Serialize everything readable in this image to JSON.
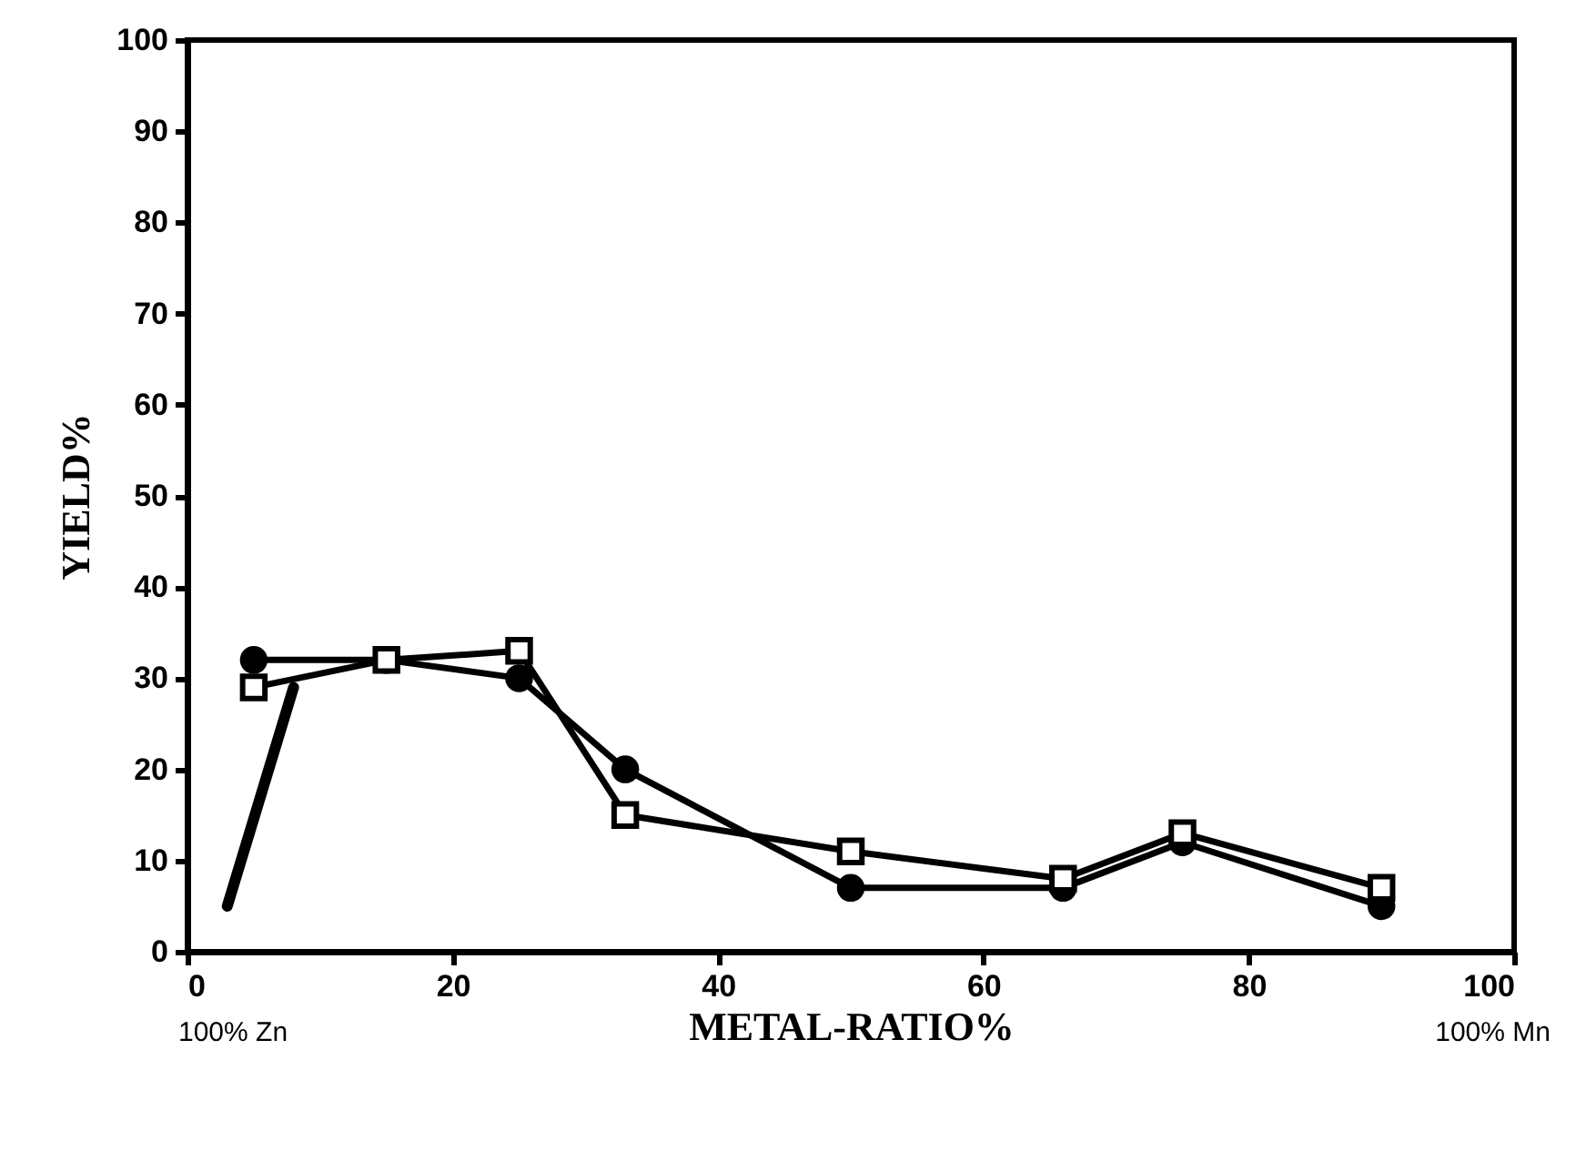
{
  "chart_data": {
    "type": "line",
    "xlabel": "METAL-RATIO%",
    "ylabel": "YIELD%",
    "annotations": [
      "100% Zn",
      "100% Mn"
    ],
    "xlim": [
      0,
      100
    ],
    "xticks": [
      0,
      20,
      40,
      60,
      80,
      100
    ],
    "ylim": [
      0,
      100
    ],
    "yticks": [
      0,
      10,
      20,
      30,
      40,
      50,
      60,
      70,
      80,
      90,
      100
    ],
    "grid": false,
    "series": [
      {
        "color": "#000000",
        "marker": "circle",
        "x": [
          5,
          15,
          25,
          33,
          50,
          66,
          75,
          90
        ],
        "values": [
          32,
          32,
          30,
          20,
          7,
          7,
          12,
          5
        ]
      },
      {
        "color": "#000000",
        "marker": "square",
        "x": [
          5,
          15,
          25,
          33,
          50,
          66,
          75,
          90
        ],
        "values": [
          29,
          32,
          33,
          15,
          11,
          8,
          13,
          7
        ]
      },
      {
        "color": "#000000",
        "marker": "none",
        "x": [
          3,
          8
        ],
        "values": [
          5,
          29
        ]
      }
    ]
  }
}
